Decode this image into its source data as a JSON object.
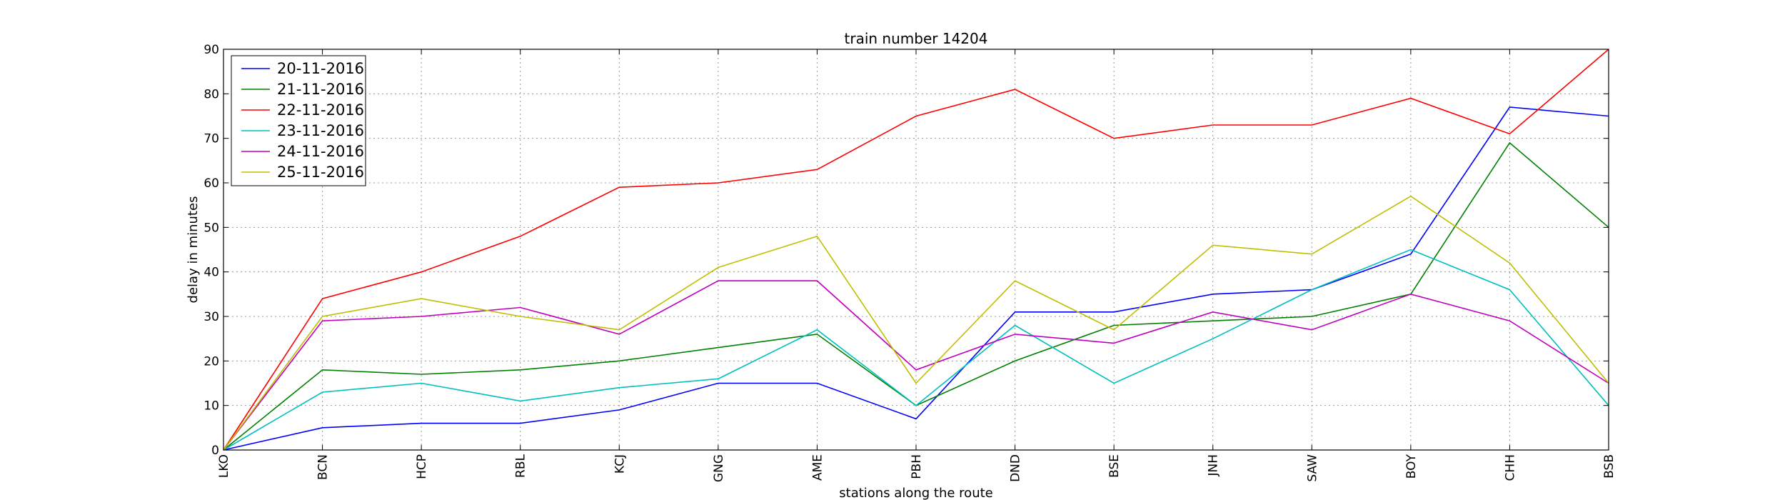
{
  "chart_data": {
    "type": "line",
    "title": "train number 14204",
    "xlabel": "stations along the route",
    "ylabel": "delay in minutes",
    "categories": [
      "LKO",
      "BCN",
      "HCP",
      "RBL",
      "KCJ",
      "GNG",
      "AME",
      "PBH",
      "DND",
      "BSE",
      "JNH",
      "SAW",
      "BOY",
      "CHH",
      "BSB"
    ],
    "ylim": [
      0,
      90
    ],
    "yticks": [
      0,
      10,
      20,
      30,
      40,
      50,
      60,
      70,
      80,
      90
    ],
    "grid": true,
    "legend_position": "top-left",
    "series": [
      {
        "name": "20-11-2016",
        "color": "#0000ff",
        "values": [
          0,
          5,
          6,
          6,
          9,
          15,
          15,
          7,
          31,
          31,
          35,
          36,
          44,
          77,
          75
        ]
      },
      {
        "name": "21-11-2016",
        "color": "#008000",
        "values": [
          0,
          18,
          17,
          18,
          20,
          23,
          26,
          10,
          20,
          28,
          29,
          30,
          35,
          69,
          50
        ]
      },
      {
        "name": "22-11-2016",
        "color": "#ff0000",
        "values": [
          0,
          34,
          40,
          48,
          59,
          60,
          63,
          75,
          81,
          70,
          73,
          73,
          79,
          71,
          90
        ]
      },
      {
        "name": "23-11-2016",
        "color": "#00bfbf",
        "values": [
          0,
          13,
          15,
          11,
          14,
          16,
          27,
          10,
          28,
          15,
          25,
          36,
          45,
          36,
          10
        ]
      },
      {
        "name": "24-11-2016",
        "color": "#bf00bf",
        "values": [
          0,
          29,
          30,
          32,
          26,
          38,
          38,
          18,
          26,
          24,
          31,
          27,
          35,
          29,
          15
        ]
      },
      {
        "name": "25-11-2016",
        "color": "#bfbf00",
        "values": [
          0,
          30,
          34,
          30,
          27,
          41,
          48,
          15,
          38,
          27,
          46,
          44,
          57,
          42,
          15
        ]
      }
    ]
  }
}
